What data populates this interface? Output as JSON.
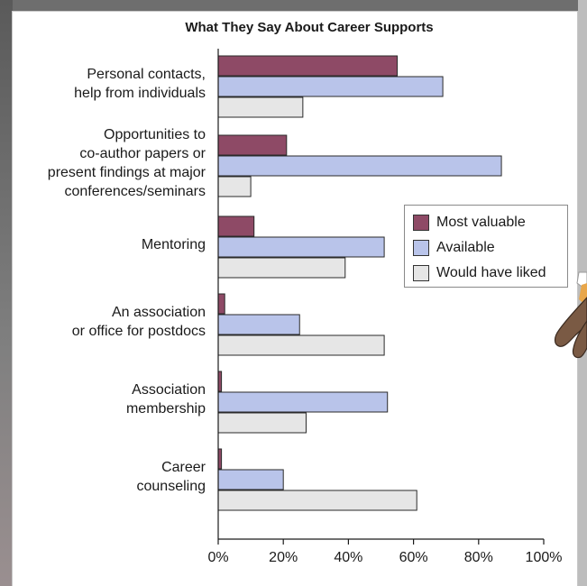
{
  "chart_data": {
    "type": "bar",
    "orientation": "horizontal",
    "title": "What They Say About Career Supports",
    "categories": [
      "Personal contacts,\nhelp from individuals",
      "Opportunities to\nco-author papers or\npresent findings at major\nconferences/seminars",
      "Mentoring",
      "An association\nor office for postdocs",
      "Association\nmembership",
      "Career\ncounseling"
    ],
    "series": [
      {
        "name": "Most valuable",
        "color": "#8e4a66",
        "values": [
          55,
          21,
          11,
          2,
          1,
          1
        ]
      },
      {
        "name": "Available",
        "color": "#b9c4ea",
        "values": [
          69,
          87,
          51,
          25,
          52,
          20
        ]
      },
      {
        "name": "Would have liked",
        "color": "#e6e6e6",
        "values": [
          26,
          10,
          39,
          51,
          27,
          61
        ]
      }
    ],
    "xlim": [
      0,
      100
    ],
    "xticks": [
      "0%",
      "20%",
      "40%",
      "60%",
      "80%",
      "100%"
    ],
    "legend_position": "right",
    "grid": false
  }
}
